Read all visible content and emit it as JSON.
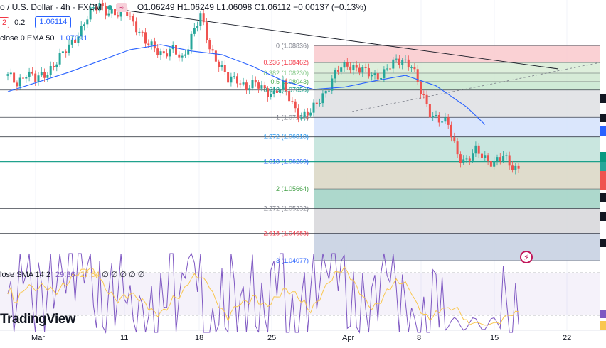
{
  "header": {
    "symbol": "o / U.S. Dollar · 4h · FXCM",
    "pill": "≈",
    "ohlc": "O1.06249 H1.06249 L1.06098 C1.06112 −0.00137 (−0.13%)"
  },
  "row2": {
    "redbox": "2",
    "spread": "0.2",
    "price_box": "1.06114"
  },
  "ema": {
    "label": "close 0 EMA 50",
    "value": "1.07091"
  },
  "sma": {
    "label": "lose SMA 14 2",
    "v1": "29.36",
    "v2": "27.64",
    "rest": "∅ ∅ ∅ ∅    ∅"
  },
  "brand": "TradingView",
  "x_labels": [
    "Mar",
    "11",
    "18",
    "25",
    "Apr",
    "8",
    "15",
    "22"
  ],
  "fib_levels": [
    {
      "label": "0 (1.08836)",
      "value": 1.08836,
      "color": "#787b86"
    },
    {
      "label": "0.236 (1.08462)",
      "value": 1.08462,
      "color": "#f23645"
    },
    {
      "label": "0.382 (1.08230)",
      "value": 1.0823,
      "color": "#81c784"
    },
    {
      "label": "0.5 (1.08043)",
      "value": 1.08043,
      "color": "#4caf50"
    },
    {
      "label": "0.618 (1.07856)",
      "value": 1.07856,
      "color": "#089981"
    },
    {
      "label": "1 (1.07250)",
      "value": 1.0725,
      "color": "#787b86"
    },
    {
      "label": "1.272 (1.06818)",
      "value": 1.06818,
      "color": "#2196f3"
    },
    {
      "label": "1.618 (1.06269)",
      "value": 1.06269,
      "color": "#2962ff"
    },
    {
      "label": "2 (1.05664)",
      "value": 1.05664,
      "color": "#43a047"
    },
    {
      "label": "2.272 (1.05232)",
      "value": 1.05232,
      "color": "#787b86"
    },
    {
      "label": "2.618 (1.04683)",
      "value": 1.04683,
      "color": "#f23645"
    },
    {
      "label": "3 (1.04077)",
      "value": 1.04077,
      "color": "#2962ff"
    }
  ],
  "colors": {
    "up": "#26a69a",
    "down": "#ef5350",
    "ema": "#2962ff",
    "rsi": "#7e57c2",
    "sma": "#f9c74f"
  },
  "chart_data": {
    "type": "candlestick",
    "title": "o / U.S. Dollar · 4h · FXCM",
    "x_ticks": [
      "Mar",
      "11",
      "18",
      "25",
      "Apr",
      "8",
      "15",
      "22"
    ],
    "ylim": [
      1.0395,
      1.0985
    ],
    "close_path": [
      {
        "t": 0,
        "c": 1.0815
      },
      {
        "t": 3,
        "c": 1.0802
      },
      {
        "t": 6,
        "c": 1.0825
      },
      {
        "t": 9,
        "c": 1.0807
      },
      {
        "t": 12,
        "c": 1.0822
      },
      {
        "t": 15,
        "c": 1.0842
      },
      {
        "t": 18,
        "c": 1.0862
      },
      {
        "t": 21,
        "c": 1.0893
      },
      {
        "t": 24,
        "c": 1.0922
      },
      {
        "t": 27,
        "c": 1.0955
      },
      {
        "t": 30,
        "c": 1.0978
      },
      {
        "t": 33,
        "c": 1.0958
      },
      {
        "t": 36,
        "c": 1.0948
      },
      {
        "t": 39,
        "c": 1.0962
      },
      {
        "t": 42,
        "c": 1.0925
      },
      {
        "t": 45,
        "c": 1.0888
      },
      {
        "t": 48,
        "c": 1.0882
      },
      {
        "t": 51,
        "c": 1.0865
      },
      {
        "t": 54,
        "c": 1.0872
      },
      {
        "t": 57,
        "c": 1.0856
      },
      {
        "t": 60,
        "c": 1.0905
      },
      {
        "t": 63,
        "c": 1.0946
      },
      {
        "t": 66,
        "c": 1.0882
      },
      {
        "t": 69,
        "c": 1.0845
      },
      {
        "t": 72,
        "c": 1.0805
      },
      {
        "t": 75,
        "c": 1.0812
      },
      {
        "t": 78,
        "c": 1.0792
      },
      {
        "t": 81,
        "c": 1.0796
      },
      {
        "t": 84,
        "c": 1.0788
      },
      {
        "t": 87,
        "c": 1.0778
      },
      {
        "t": 90,
        "c": 1.0792
      },
      {
        "t": 93,
        "c": 1.0758
      },
      {
        "t": 96,
        "c": 1.0726
      },
      {
        "t": 99,
        "c": 1.0733
      },
      {
        "t": 102,
        "c": 1.0768
      },
      {
        "t": 105,
        "c": 1.0795
      },
      {
        "t": 108,
        "c": 1.0828
      },
      {
        "t": 111,
        "c": 1.0845
      },
      {
        "t": 114,
        "c": 1.0835
      },
      {
        "t": 117,
        "c": 1.0822
      },
      {
        "t": 120,
        "c": 1.0818
      },
      {
        "t": 123,
        "c": 1.0825
      },
      {
        "t": 126,
        "c": 1.0842
      },
      {
        "t": 129,
        "c": 1.0855
      },
      {
        "t": 132,
        "c": 1.0842
      },
      {
        "t": 135,
        "c": 1.0778
      },
      {
        "t": 138,
        "c": 1.0738
      },
      {
        "t": 141,
        "c": 1.0722
      },
      {
        "t": 144,
        "c": 1.0705
      },
      {
        "t": 147,
        "c": 1.0645
      },
      {
        "t": 150,
        "c": 1.0628
      },
      {
        "t": 153,
        "c": 1.0648
      },
      {
        "t": 156,
        "c": 1.0638
      },
      {
        "t": 159,
        "c": 1.0625
      },
      {
        "t": 162,
        "c": 1.0635
      },
      {
        "t": 165,
        "c": 1.0618
      },
      {
        "t": 167,
        "c": 1.0611
      }
    ],
    "ema50_path": [
      {
        "t": 0,
        "v": 1.0782
      },
      {
        "t": 20,
        "v": 1.0825
      },
      {
        "t": 40,
        "v": 1.0875
      },
      {
        "t": 50,
        "v": 1.0886
      },
      {
        "t": 60,
        "v": 1.0872
      },
      {
        "t": 70,
        "v": 1.0864
      },
      {
        "t": 80,
        "v": 1.0838
      },
      {
        "t": 90,
        "v": 1.0806
      },
      {
        "t": 100,
        "v": 1.0787
      },
      {
        "t": 110,
        "v": 1.0792
      },
      {
        "t": 120,
        "v": 1.0806
      },
      {
        "t": 130,
        "v": 1.0818
      },
      {
        "t": 140,
        "v": 1.0795
      },
      {
        "t": 150,
        "v": 1.0748
      },
      {
        "t": 156,
        "v": 1.0709
      }
    ],
    "rsi": {
      "label": "lose SMA 14 2",
      "rsi": 29.36,
      "sma": 27.64
    }
  }
}
